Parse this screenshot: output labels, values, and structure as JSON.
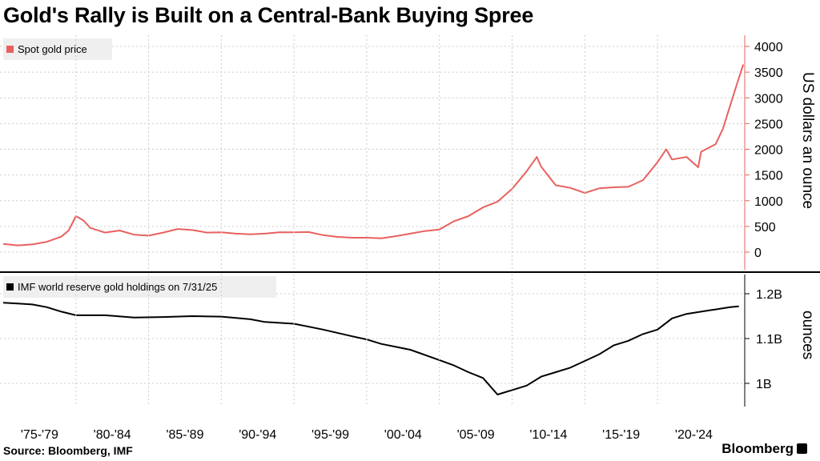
{
  "title": "Gold's Rally is Built on a Central-Bank Buying Spree",
  "source": "Source: Bloomberg, IMF",
  "brand": "Bloomberg",
  "chart_data": [
    {
      "type": "line",
      "legend": "Spot gold price",
      "ylabel": "US dollars an ounce",
      "ylim": [
        0,
        4000
      ],
      "yticks": [
        "4000",
        "3500",
        "3000",
        "2500",
        "2000",
        "1500",
        "1000",
        "500",
        "0"
      ],
      "xlim": [
        1975,
        2026
      ],
      "color": "#e8615f",
      "series": [
        {
          "x": [
            1975,
            1976,
            1977,
            1978,
            1979,
            1979.5,
            1980,
            1980.5,
            1981,
            1982,
            1983,
            1984,
            1985,
            1986,
            1987,
            1988,
            1989,
            1990,
            1991,
            1992,
            1993,
            1994,
            1995,
            1996,
            1997,
            1998,
            1999,
            2000,
            2001,
            2002,
            2003,
            2004,
            2005,
            2006,
            2007,
            2008,
            2009,
            2010,
            2011,
            2011.7,
            2012,
            2013,
            2014,
            2015,
            2016,
            2017,
            2018,
            2019,
            2020,
            2020.6,
            2021,
            2022,
            2022.8,
            2023,
            2024,
            2024.5,
            2025,
            2025.5,
            2025.9
          ],
          "values": [
            160,
            130,
            150,
            200,
            300,
            420,
            700,
            620,
            470,
            380,
            420,
            340,
            320,
            380,
            450,
            430,
            380,
            385,
            360,
            345,
            360,
            385,
            385,
            390,
            330,
            295,
            280,
            280,
            270,
            310,
            360,
            410,
            440,
            600,
            700,
            870,
            980,
            1230,
            1570,
            1850,
            1660,
            1300,
            1250,
            1150,
            1240,
            1260,
            1270,
            1400,
            1750,
            2000,
            1800,
            1850,
            1650,
            1950,
            2100,
            2400,
            2850,
            3300,
            3650
          ]
        }
      ]
    },
    {
      "type": "line",
      "legend": "IMF world reserve gold holdings on 7/31/25",
      "ylabel": "ounces",
      "ylim": [
        0.95,
        1.2
      ],
      "yticks": [
        "1.2B",
        "1.1B",
        "1B"
      ],
      "xlim": [
        1975,
        2026
      ],
      "color": "#000000",
      "series": [
        {
          "x": [
            1975,
            1976,
            1977,
            1978,
            1979,
            1980,
            1982,
            1984,
            1986,
            1988,
            1990,
            1992,
            1993,
            1995,
            1997,
            1999,
            2000,
            2001,
            2003,
            2005,
            2006,
            2007,
            2008,
            2009,
            2010,
            2011,
            2012,
            2013,
            2014,
            2015,
            2016,
            2017,
            2018,
            2019,
            2020,
            2021,
            2022,
            2023,
            2024,
            2025,
            2025.6
          ],
          "values": [
            1.18,
            1.178,
            1.176,
            1.17,
            1.16,
            1.152,
            1.152,
            1.147,
            1.148,
            1.15,
            1.149,
            1.143,
            1.137,
            1.133,
            1.12,
            1.105,
            1.098,
            1.088,
            1.075,
            1.052,
            1.04,
            1.025,
            1.012,
            0.975,
            0.985,
            0.995,
            1.015,
            1.025,
            1.035,
            1.05,
            1.065,
            1.085,
            1.095,
            1.11,
            1.12,
            1.145,
            1.155,
            1.16,
            1.165,
            1.17,
            1.172
          ]
        }
      ]
    }
  ],
  "x_axis": {
    "tick_labels": [
      "'75-'79",
      "'80-'84",
      "'85-'89",
      "'90-'94",
      "'95-'99",
      "'00-'04",
      "'05-'09",
      "'10-'14",
      "'15-'19",
      "'20-'24"
    ]
  }
}
